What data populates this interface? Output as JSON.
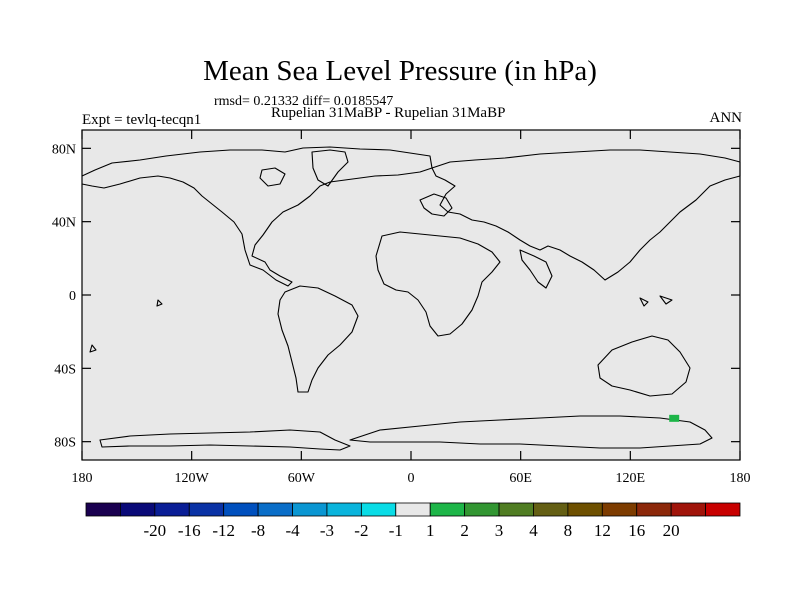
{
  "title": "Mean Sea Level Pressure (in hPa)",
  "stats": "rmsd= 0.21332 diff= 0.0185547",
  "experiment": "Expt = tevlq-tecqn1",
  "subtitle": "Rupelian  31MaBP - Rupelian  31MaBP",
  "season": "ANN",
  "colors": {
    "background_field": "#e8e8e8",
    "coast": "#000000",
    "anomaly_patch": "#1db548"
  },
  "map": {
    "projection": "cylindrical-equidistant",
    "lon_range": [
      -180,
      180
    ],
    "lat_range": [
      -90,
      90
    ],
    "y_ticks": [
      {
        "lat": 80,
        "label": "80N"
      },
      {
        "lat": 40,
        "label": "40N"
      },
      {
        "lat": 0,
        "label": "0"
      },
      {
        "lat": -40,
        "label": "40S"
      },
      {
        "lat": -80,
        "label": "80S"
      }
    ],
    "x_ticks": [
      {
        "lon": -180,
        "label": "180"
      },
      {
        "lon": -120,
        "label": "120W"
      },
      {
        "lon": -60,
        "label": "60W"
      },
      {
        "lon": 0,
        "label": "0"
      },
      {
        "lon": 60,
        "label": "60E"
      },
      {
        "lon": 120,
        "label": "120E"
      },
      {
        "lon": 180,
        "label": "180"
      }
    ],
    "anomaly": {
      "lon": 144,
      "lat": -67,
      "value_class": "1 to 2"
    }
  },
  "colorbar": {
    "colors": [
      "#1a0050",
      "#0a0a78",
      "#0a1e96",
      "#0a32a5",
      "#0050be",
      "#0a6ec8",
      "#0a96d2",
      "#0ab4dc",
      "#0adce6",
      "#e8e8e8",
      "#1db548",
      "#329632",
      "#507d23",
      "#645f14",
      "#6e5000",
      "#7d3c00",
      "#8c280a",
      "#a0140a",
      "#c80000"
    ],
    "labels": [
      "-20",
      "-16",
      "-12",
      "-8",
      "-4",
      "-3",
      "-2",
      "-1",
      "1",
      "2",
      "3",
      "4",
      "8",
      "12",
      "16",
      "20"
    ]
  }
}
